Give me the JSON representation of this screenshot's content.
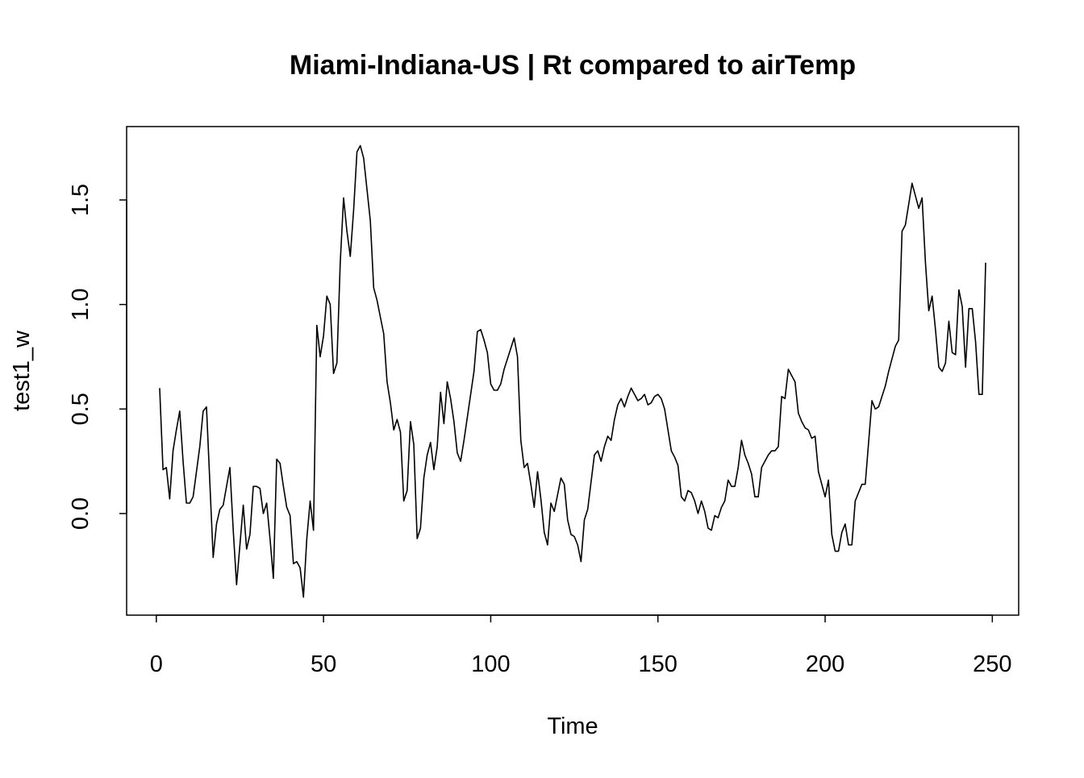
{
  "chart_data": {
    "type": "line",
    "title": "Miami-Indiana-US | Rt compared to airTemp",
    "x_label": "Time",
    "y_label": "test1_w",
    "color": "#000000",
    "x": [
      1,
      2,
      3,
      4,
      5,
      6,
      7,
      8,
      9,
      10,
      11,
      12,
      13,
      14,
      15,
      16,
      17,
      18,
      19,
      20,
      21,
      22,
      23,
      24,
      25,
      26,
      27,
      28,
      29,
      30,
      31,
      32,
      33,
      34,
      35,
      36,
      37,
      38,
      39,
      40,
      41,
      42,
      43,
      44,
      45,
      46,
      47,
      48,
      49,
      50,
      51,
      52,
      53,
      54,
      55,
      56,
      57,
      58,
      59,
      60,
      61,
      62,
      63,
      64,
      65,
      66,
      67,
      68,
      69,
      70,
      71,
      72,
      73,
      74,
      75,
      76,
      77,
      78,
      79,
      80,
      81,
      82,
      83,
      84,
      85,
      86,
      87,
      88,
      89,
      90,
      91,
      92,
      93,
      94,
      95,
      96,
      97,
      98,
      99,
      100,
      101,
      102,
      103,
      104,
      105,
      106,
      107,
      108,
      109,
      110,
      111,
      112,
      113,
      114,
      115,
      116,
      117,
      118,
      119,
      120,
      121,
      122,
      123,
      124,
      125,
      126,
      127,
      128,
      129,
      130,
      131,
      132,
      133,
      134,
      135,
      136,
      137,
      138,
      139,
      140,
      141,
      142,
      143,
      144,
      145,
      146,
      147,
      148,
      149,
      150,
      151,
      152,
      153,
      154,
      155,
      156,
      157,
      158,
      159,
      160,
      161,
      162,
      163,
      164,
      165,
      166,
      167,
      168,
      169,
      170,
      171,
      172,
      173,
      174,
      175,
      176,
      177,
      178,
      179,
      180,
      181,
      182,
      183,
      184,
      185,
      186,
      187,
      188,
      189,
      190,
      191,
      192,
      193,
      194,
      195,
      196,
      197,
      198,
      199,
      200,
      201,
      202,
      203,
      204,
      205,
      206,
      207,
      208,
      209,
      210,
      211,
      212,
      213,
      214,
      215,
      216,
      217,
      218,
      219,
      220,
      221,
      222,
      223,
      224,
      225,
      226,
      227,
      228,
      229,
      230,
      231,
      232,
      233,
      234,
      235,
      236,
      237,
      238,
      239,
      240,
      241,
      242,
      243,
      244,
      245,
      246,
      247,
      248
    ],
    "values": [
      0.6,
      0.21,
      0.22,
      0.07,
      0.3,
      0.4,
      0.49,
      0.25,
      0.05,
      0.05,
      0.08,
      0.2,
      0.32,
      0.49,
      0.51,
      0.15,
      -0.21,
      -0.05,
      0.02,
      0.04,
      0.13,
      0.22,
      -0.08,
      -0.34,
      -0.15,
      0.04,
      -0.17,
      -0.1,
      0.13,
      0.13,
      0.12,
      0.0,
      0.05,
      -0.12,
      -0.31,
      0.26,
      0.24,
      0.13,
      0.03,
      -0.01,
      -0.24,
      -0.23,
      -0.26,
      -0.4,
      -0.12,
      0.06,
      -0.08,
      0.9,
      0.75,
      0.85,
      1.04,
      1.0,
      0.67,
      0.72,
      1.2,
      1.51,
      1.35,
      1.23,
      1.45,
      1.73,
      1.76,
      1.7,
      1.55,
      1.4,
      1.08,
      1.02,
      0.94,
      0.86,
      0.63,
      0.53,
      0.4,
      0.45,
      0.39,
      0.06,
      0.11,
      0.44,
      0.33,
      -0.12,
      -0.07,
      0.17,
      0.28,
      0.34,
      0.21,
      0.32,
      0.58,
      0.43,
      0.63,
      0.55,
      0.44,
      0.29,
      0.25,
      0.35,
      0.46,
      0.57,
      0.68,
      0.87,
      0.88,
      0.83,
      0.77,
      0.62,
      0.59,
      0.59,
      0.62,
      0.69,
      0.74,
      0.79,
      0.84,
      0.75,
      0.35,
      0.22,
      0.24,
      0.14,
      0.03,
      0.2,
      0.07,
      -0.09,
      -0.15,
      0.05,
      0.01,
      0.09,
      0.17,
      0.14,
      -0.03,
      -0.1,
      -0.11,
      -0.15,
      -0.23,
      -0.03,
      0.02,
      0.15,
      0.28,
      0.3,
      0.25,
      0.32,
      0.37,
      0.35,
      0.45,
      0.52,
      0.55,
      0.51,
      0.56,
      0.6,
      0.57,
      0.54,
      0.55,
      0.57,
      0.52,
      0.53,
      0.56,
      0.57,
      0.55,
      0.5,
      0.4,
      0.3,
      0.27,
      0.23,
      0.08,
      0.06,
      0.11,
      0.1,
      0.06,
      0.0,
      0.06,
      0.01,
      -0.07,
      -0.08,
      -0.01,
      -0.02,
      0.03,
      0.06,
      0.16,
      0.13,
      0.13,
      0.22,
      0.35,
      0.28,
      0.24,
      0.19,
      0.08,
      0.08,
      0.22,
      0.25,
      0.28,
      0.3,
      0.3,
      0.32,
      0.56,
      0.55,
      0.69,
      0.66,
      0.63,
      0.48,
      0.44,
      0.41,
      0.4,
      0.36,
      0.37,
      0.2,
      0.14,
      0.08,
      0.16,
      -0.1,
      -0.18,
      -0.18,
      -0.09,
      -0.05,
      -0.15,
      -0.15,
      0.06,
      0.1,
      0.14,
      0.14,
      0.34,
      0.54,
      0.5,
      0.51,
      0.56,
      0.61,
      0.68,
      0.74,
      0.8,
      0.83,
      1.35,
      1.38,
      1.48,
      1.58,
      1.52,
      1.46,
      1.51,
      1.2,
      0.97,
      1.04,
      0.88,
      0.7,
      0.68,
      0.72,
      0.92,
      0.77,
      0.76,
      1.07,
      0.99,
      0.7,
      0.98,
      0.98,
      0.82,
      0.57,
      0.57,
      1.2
    ],
    "xlim": [
      -8.88,
      257.88
    ],
    "ylim": [
      -0.486,
      1.851
    ],
    "xticks": [
      0,
      50,
      100,
      150,
      200,
      250
    ],
    "yticks": [
      {
        "value": 0,
        "label": "0.0"
      },
      0.5,
      {
        "value": 1,
        "label": "1.0"
      },
      1.5
    ]
  }
}
